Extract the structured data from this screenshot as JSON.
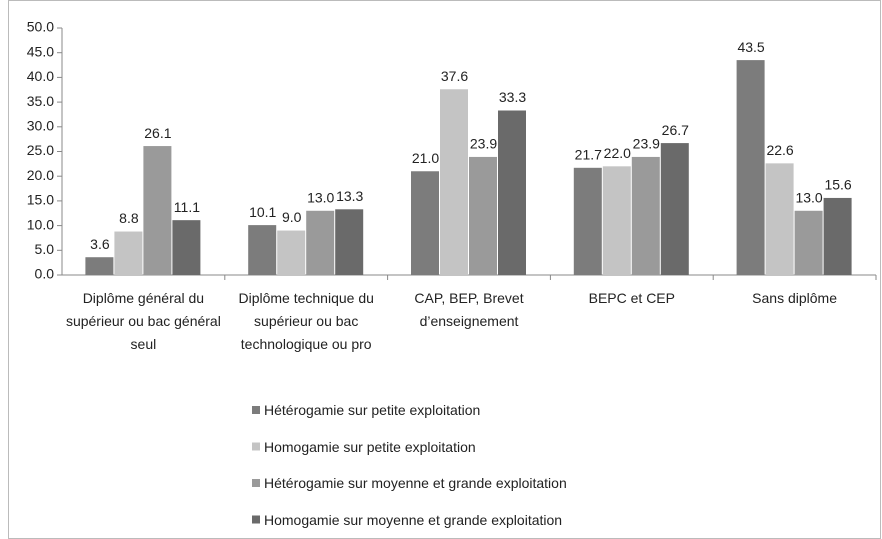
{
  "chart_data": {
    "type": "bar",
    "categories": [
      "Diplôme général du supérieur ou bac général seul",
      "Diplôme technique du supérieur ou bac technologique ou pro",
      "CAP, BEP, Brevet d’enseignement",
      "BEPC et CEP",
      "Sans diplôme"
    ],
    "series": [
      {
        "name": "Hétérogamie sur petite exploitation",
        "color": "#7c7c7c",
        "values": [
          3.6,
          10.1,
          21,
          21.7,
          43.5
        ],
        "value_labels": [
          "3.6",
          "10.1",
          "21.0",
          "21.7",
          "43.5"
        ]
      },
      {
        "name": "Homogamie sur petite exploitation",
        "color": "#c4c4c4",
        "values": [
          8.8,
          9,
          37.6,
          22,
          22.6
        ],
        "value_labels": [
          "8.8",
          "9.0",
          "37.6",
          "22.0",
          "22.6"
        ]
      },
      {
        "name": "Hétérogamie sur moyenne et grande exploitation",
        "color": "#9a9a9a",
        "values": [
          26.1,
          13,
          23.9,
          23.9,
          13
        ],
        "value_labels": [
          "26.1",
          "13.0",
          "23.9",
          "23.9",
          "13.0"
        ]
      },
      {
        "name": "Homogamie sur moyenne et grande exploitation",
        "color": "#6a6a6a",
        "values": [
          11.1,
          13.3,
          33.3,
          26.7,
          15.6
        ],
        "value_labels": [
          "11.1",
          "13.3",
          "33.3",
          "26.7",
          "15.6"
        ]
      }
    ],
    "ylim": [
      0,
      50
    ],
    "yticks": [
      {
        "value": 0,
        "label": "0.0"
      },
      {
        "value": 5,
        "label": "5.0"
      },
      {
        "value": 10,
        "label": "10.0"
      },
      {
        "value": 15,
        "label": "15.0"
      },
      {
        "value": 20,
        "label": "20.0"
      },
      {
        "value": 25,
        "label": "25.0"
      },
      {
        "value": 30,
        "label": "30.0"
      },
      {
        "value": 35,
        "label": "35.0"
      },
      {
        "value": 40,
        "label": "40.0"
      },
      {
        "value": 45,
        "label": "45.0"
      },
      {
        "value": 50,
        "label": "50.0"
      }
    ],
    "grid": false,
    "legend": "bottom"
  }
}
